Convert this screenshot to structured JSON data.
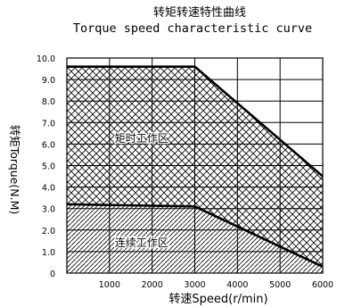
{
  "chart_data": {
    "type": "area",
    "title": "转矩转速特性曲线",
    "subtitle": "Torque speed characteristic curve",
    "xlabel": "转速Speed(r/min)",
    "ylabel": "转矩Torque(N.M)",
    "xlim": [
      0,
      6000
    ],
    "ylim": [
      0,
      10.0
    ],
    "x_ticks": [
      "1000",
      "2000",
      "3000",
      "4000",
      "5000",
      "6000"
    ],
    "y_ticks": [
      "0",
      "1.0",
      "2.0",
      "3.0",
      "4.0",
      "5.0",
      "6.0",
      "7.0",
      "8.0",
      "9.0",
      "10.0"
    ],
    "grid": true,
    "series": [
      {
        "name": "矩时工作区",
        "x": [
          0,
          3000,
          6000
        ],
        "y": [
          9.6,
          9.6,
          4.5
        ]
      },
      {
        "name": "连续工作区",
        "x": [
          0,
          3000,
          6000
        ],
        "y": [
          3.2,
          3.1,
          0.3
        ]
      }
    ],
    "colors": {
      "grid": "#000000",
      "curve": "#000000",
      "hatch": "#000000"
    }
  }
}
